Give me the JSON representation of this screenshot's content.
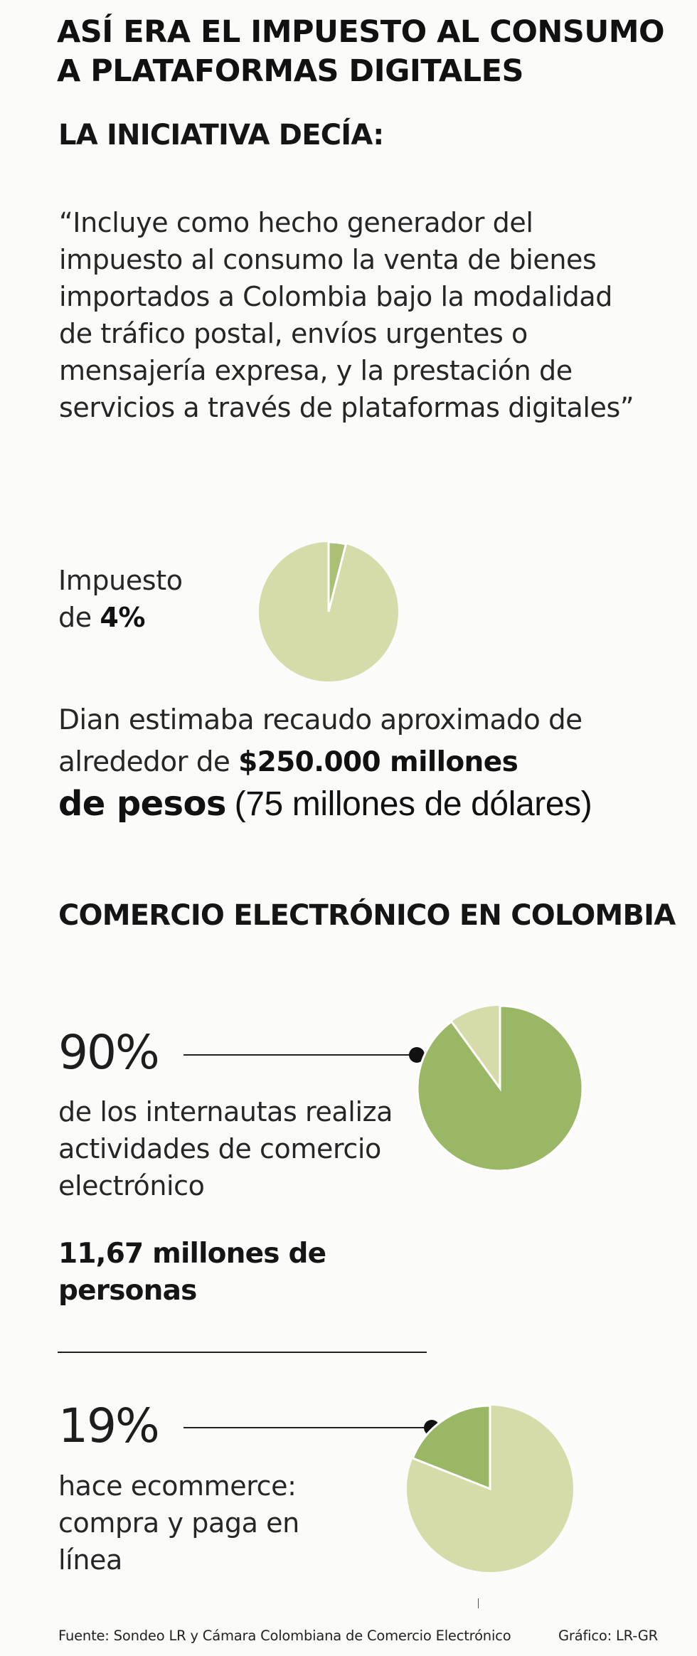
{
  "title": {
    "line1": "ASÍ ERA EL IMPUESTO AL CONSUMO",
    "line2": "A PLATAFORMAS DIGITALES"
  },
  "initiative": {
    "heading": "LA INICIATIVA DECÍA:",
    "quote": "“Incluye como hecho generador del impuesto al consumo la venta de bienes importados a Colombia bajo la modalidad de tráfico postal, envíos urgentes o mensajería expresa, y la prestación de servicios a través de plataformas digitales”"
  },
  "tax": {
    "label_line1": "Impuesto",
    "label_prefix": "de",
    "rate_text": "4%",
    "rate_value": 4
  },
  "revenue": {
    "prefix": "Dian estimaba recaudo aproximado de alrededor de",
    "amount": "$250.000 millones",
    "amount_suffix": "de pesos",
    "usd": "(75 millones de dólares)"
  },
  "ecommerce": {
    "heading": "COMERCIO ELECTRÓNICO EN COLOMBIA",
    "stat1": {
      "value_text": "90%",
      "value": 90,
      "desc": "de los internautas realiza actividades de comercio electrónico",
      "people": "11,67 millones de personas"
    },
    "stat2": {
      "value_text": "19%",
      "value": 19,
      "desc": "hace ecommerce: compra y paga en línea"
    }
  },
  "footer": {
    "source": "Fuente: Sondeo LR y Cámara Colombiana de Comercio Electrónico",
    "credit": "Gráfico: LR-GR"
  },
  "colors": {
    "pale_green": "#d6dca9",
    "mid_green": "#a9c075",
    "dark_green": "#99b765",
    "background": "#fbfbfa"
  }
}
